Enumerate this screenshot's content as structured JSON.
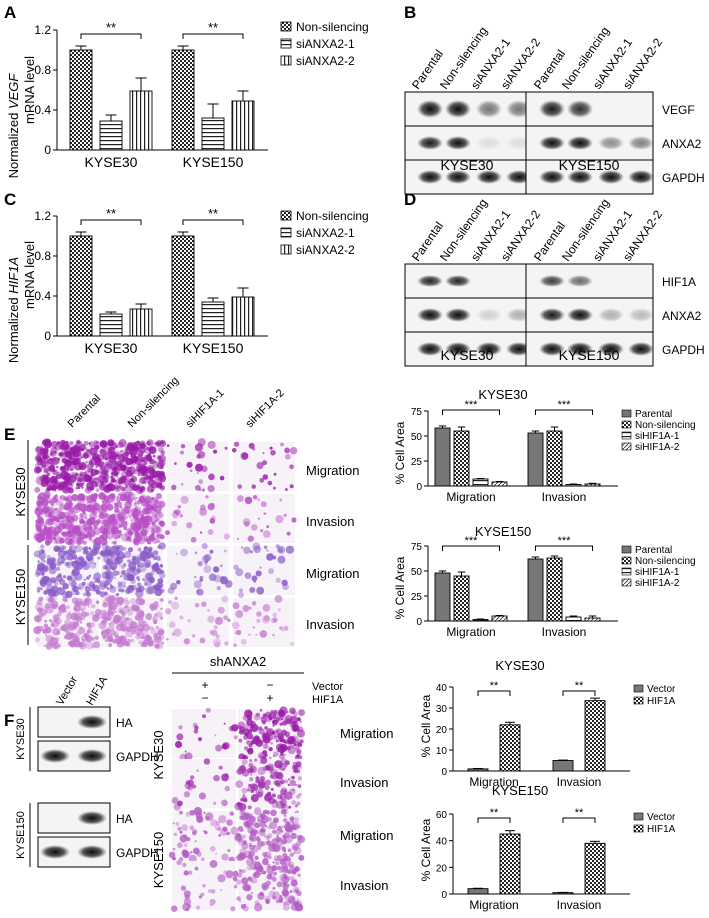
{
  "panels": {
    "A": {
      "letter": "A",
      "ylabel_prefix": "Normalized ",
      "ylabel_italic": "VEGF",
      "ylabel_line2": "mRNA level",
      "legend": [
        "Non-silencing",
        "siANXA2-1",
        "siANXA2-2"
      ],
      "sig": [
        "**",
        "**"
      ],
      "ticks": [
        "0",
        "0.4",
        "0.8",
        "1.2"
      ]
    },
    "B": {
      "letter": "B",
      "lanes": [
        "Parental",
        "Non-silencing",
        "siANXA2-1",
        "siANXA2-2"
      ],
      "proteins": [
        "VEGF",
        "ANXA2",
        "GAPDH"
      ],
      "cells": [
        "KYSE30",
        "KYSE150"
      ]
    },
    "C": {
      "letter": "C",
      "ylabel_prefix": "Normalized ",
      "ylabel_italic": "HIF1A",
      "ylabel_line2": "mRNA level",
      "legend": [
        "Non-silencing",
        "siANXA2-1",
        "siANXA2-2"
      ],
      "sig": [
        "**",
        "**"
      ],
      "ticks": [
        "0",
        "0.4",
        "0.8",
        "1.2"
      ]
    },
    "D": {
      "letter": "D",
      "lanes": [
        "Parental",
        "Non-silencing",
        "siANXA2-1",
        "siANXA2-2"
      ],
      "proteins": [
        "HIF1A",
        "ANXA2",
        "GAPDH"
      ],
      "cells": [
        "KYSE30",
        "KYSE150"
      ]
    },
    "E": {
      "letter": "E",
      "lanes": [
        "Parental",
        "Non-silencing",
        "siHIF1A-1",
        "siHIF1A-2"
      ],
      "cells": [
        "KYSE30",
        "KYSE150"
      ],
      "rows": [
        "Migration",
        "Invasion",
        "Migration",
        "Invasion"
      ],
      "chart_titles": [
        "KYSE30",
        "KYSE150"
      ],
      "ylabel": "% Cell Area",
      "ticks": [
        "0",
        "25",
        "50",
        "75"
      ],
      "legend": [
        "Parental",
        "Non-silencing",
        "siHIF1A-1",
        "siHIF1A-2"
      ],
      "sig": [
        "***",
        "***"
      ]
    },
    "F": {
      "letter": "F",
      "lanes": [
        "Vector",
        "HIF1A"
      ],
      "proteins": [
        "HA",
        "GAPDH"
      ],
      "cells": [
        "KYSE30",
        "KYSE150"
      ],
      "sh_title": "shANXA2",
      "treat_labels": [
        "Vector",
        "HIF1A"
      ],
      "col1_signs": [
        "+",
        "−"
      ],
      "col2_signs": [
        "−",
        "+"
      ],
      "rows": [
        "Migration",
        "Invasion",
        "Migration",
        "Invasion"
      ],
      "chart_titles": [
        "KYSE30",
        "KYSE150"
      ],
      "ylabel": "% Cell Area",
      "ticks_top": [
        "0",
        "10",
        "20",
        "30",
        "40"
      ],
      "ticks_bottom": [
        "0",
        "20",
        "40",
        "60"
      ],
      "legend": [
        "Vector",
        "HIF1A"
      ],
      "sig": [
        "**",
        "**"
      ]
    }
  },
  "chart_data": [
    {
      "type": "bar",
      "panel": "A",
      "categories": [
        "KYSE30",
        "KYSE150"
      ],
      "series": [
        {
          "name": "Non-silencing",
          "values": [
            1.0,
            1.0
          ],
          "errors": [
            0.04,
            0.04
          ]
        },
        {
          "name": "siANXA2-1",
          "values": [
            0.29,
            0.32
          ],
          "errors": [
            0.06,
            0.14
          ]
        },
        {
          "name": "siANXA2-2",
          "values": [
            0.59,
            0.49
          ],
          "errors": [
            0.13,
            0.1
          ]
        }
      ],
      "ylabel": "Normalized VEGF mRNA level",
      "ylim": [
        0,
        1.2
      ]
    },
    {
      "type": "bar",
      "panel": "C",
      "categories": [
        "KYSE30",
        "KYSE150"
      ],
      "series": [
        {
          "name": "Non-silencing",
          "values": [
            1.0,
            1.0
          ],
          "errors": [
            0.04,
            0.04
          ]
        },
        {
          "name": "siANXA2-1",
          "values": [
            0.22,
            0.34
          ],
          "errors": [
            0.02,
            0.04
          ]
        },
        {
          "name": "siANXA2-2",
          "values": [
            0.27,
            0.39
          ],
          "errors": [
            0.05,
            0.09
          ]
        }
      ],
      "ylabel": "Normalized HIF1A mRNA level",
      "ylim": [
        0,
        1.2
      ]
    },
    {
      "type": "bar",
      "panel": "E",
      "title": "KYSE30",
      "categories": [
        "Migration",
        "Invasion"
      ],
      "series": [
        {
          "name": "Parental",
          "values": [
            58,
            53
          ],
          "errors": [
            2,
            2
          ]
        },
        {
          "name": "Non-silencing",
          "values": [
            55,
            55
          ],
          "errors": [
            4,
            4
          ]
        },
        {
          "name": "siHIF1A-1",
          "values": [
            7,
            1.5
          ],
          "errors": [
            0.5,
            0.5
          ]
        },
        {
          "name": "siHIF1A-2",
          "values": [
            4,
            2
          ],
          "errors": [
            0.5,
            0.7
          ]
        }
      ],
      "ylabel": "% Cell Area",
      "ylim": [
        0,
        75
      ]
    },
    {
      "type": "bar",
      "panel": "E",
      "title": "KYSE150",
      "categories": [
        "Migration",
        "Invasion"
      ],
      "series": [
        {
          "name": "Parental",
          "values": [
            48,
            62
          ],
          "errors": [
            2,
            2
          ]
        },
        {
          "name": "Non-silencing",
          "values": [
            45,
            63
          ],
          "errors": [
            4,
            2
          ]
        },
        {
          "name": "siHIF1A-1",
          "values": [
            1.5,
            4
          ],
          "errors": [
            0.5,
            1
          ]
        },
        {
          "name": "siHIF1A-2",
          "values": [
            5,
            3
          ],
          "errors": [
            0.5,
            2
          ]
        }
      ],
      "ylabel": "% Cell Area",
      "ylim": [
        0,
        75
      ]
    },
    {
      "type": "bar",
      "panel": "F",
      "title": "KYSE30",
      "categories": [
        "Migration",
        "Invasion"
      ],
      "series": [
        {
          "name": "Vector",
          "values": [
            1,
            5
          ],
          "errors": [
            0.2,
            0.2
          ]
        },
        {
          "name": "HIF1A",
          "values": [
            22,
            33.5
          ],
          "errors": [
            1.2,
            1.2
          ]
        }
      ],
      "ylabel": "% Cell Area",
      "ylim": [
        0,
        40
      ]
    },
    {
      "type": "bar",
      "panel": "F",
      "title": "KYSE150",
      "categories": [
        "Migration",
        "Invasion"
      ],
      "series": [
        {
          "name": "Vector",
          "values": [
            4,
            1
          ],
          "errors": [
            0.3,
            0.2
          ]
        },
        {
          "name": "HIF1A",
          "values": [
            45,
            38
          ],
          "errors": [
            2.5,
            1.5
          ]
        }
      ],
      "ylabel": "% Cell Area",
      "ylim": [
        0,
        60
      ]
    }
  ]
}
